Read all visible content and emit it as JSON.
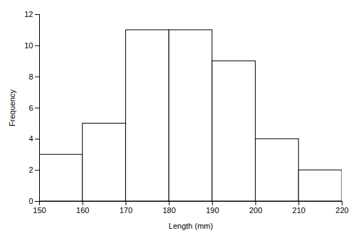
{
  "chart_data": {
    "type": "histogram",
    "bins": [
      150,
      160,
      170,
      180,
      190,
      200,
      210,
      220
    ],
    "values": [
      3,
      5,
      11,
      11,
      9,
      4,
      2
    ],
    "color": "#ffffff",
    "xlabel": "Length (mm)",
    "ylabel": "Frequency",
    "xlim": [
      150,
      220
    ],
    "ylim": [
      0,
      12
    ],
    "xticks": [
      150,
      160,
      170,
      180,
      190,
      200,
      210,
      220
    ],
    "yticks": [
      0,
      2,
      4,
      6,
      8,
      10,
      12
    ],
    "grid": false
  }
}
